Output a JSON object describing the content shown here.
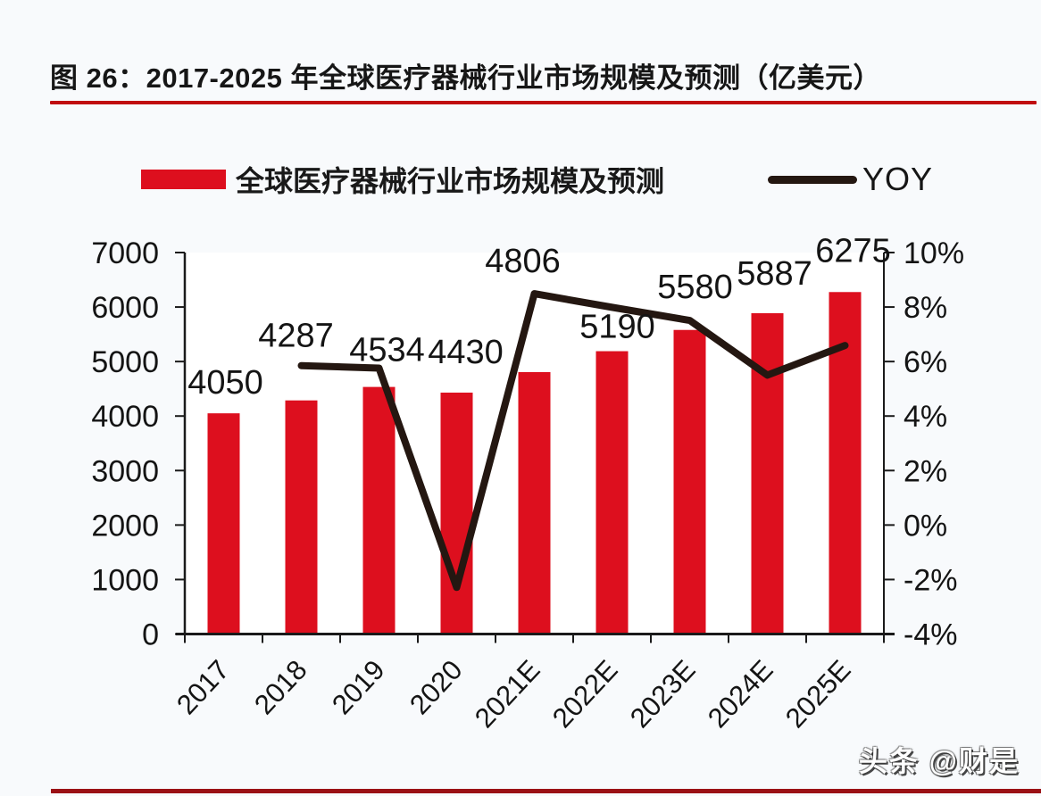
{
  "figure": {
    "title": "图 26：2017-2025 年全球医疗器械行业市场规模及预测（亿美元）",
    "watermark": "头条 @财是"
  },
  "colors": {
    "bar": "#dd0f1e",
    "line": "#241711",
    "title_underline": "#c00d10",
    "bottom_rule": "#9b1115",
    "axis": "#1a1a1a",
    "text": "#141414",
    "plot_background": "#ffffff"
  },
  "chart_data": {
    "type": "bar",
    "title": "2017-2025 年全球医疗器械行业市场规模及预测（亿美元）",
    "categories": [
      "2017",
      "2018",
      "2019",
      "2020",
      "2021E",
      "2022E",
      "2023E",
      "2024E",
      "2025E"
    ],
    "series": [
      {
        "name": "全球医疗器械行业市场规模及预测",
        "type": "bar",
        "axis": "left",
        "color": "#dd0f1e",
        "values": [
          4050,
          4287,
          4534,
          4430,
          4806,
          5190,
          5580,
          5887,
          6275
        ]
      },
      {
        "name": "YOY",
        "type": "line",
        "axis": "right",
        "color": "#241711",
        "unit": "%",
        "values": [
          null,
          5.85,
          5.76,
          -2.29,
          8.49,
          7.99,
          7.51,
          5.5,
          6.59
        ]
      }
    ],
    "data_labels": [
      "4050",
      "4287",
      "4534",
      "4430",
      "4806",
      "5190",
      "5580",
      "5887",
      "6275"
    ],
    "left_axis": {
      "min": 0,
      "max": 7000,
      "step": 1000
    },
    "right_axis": {
      "min": -4,
      "max": 10,
      "step": 2,
      "suffix": "%"
    },
    "grid": false,
    "legend_position": "top"
  }
}
